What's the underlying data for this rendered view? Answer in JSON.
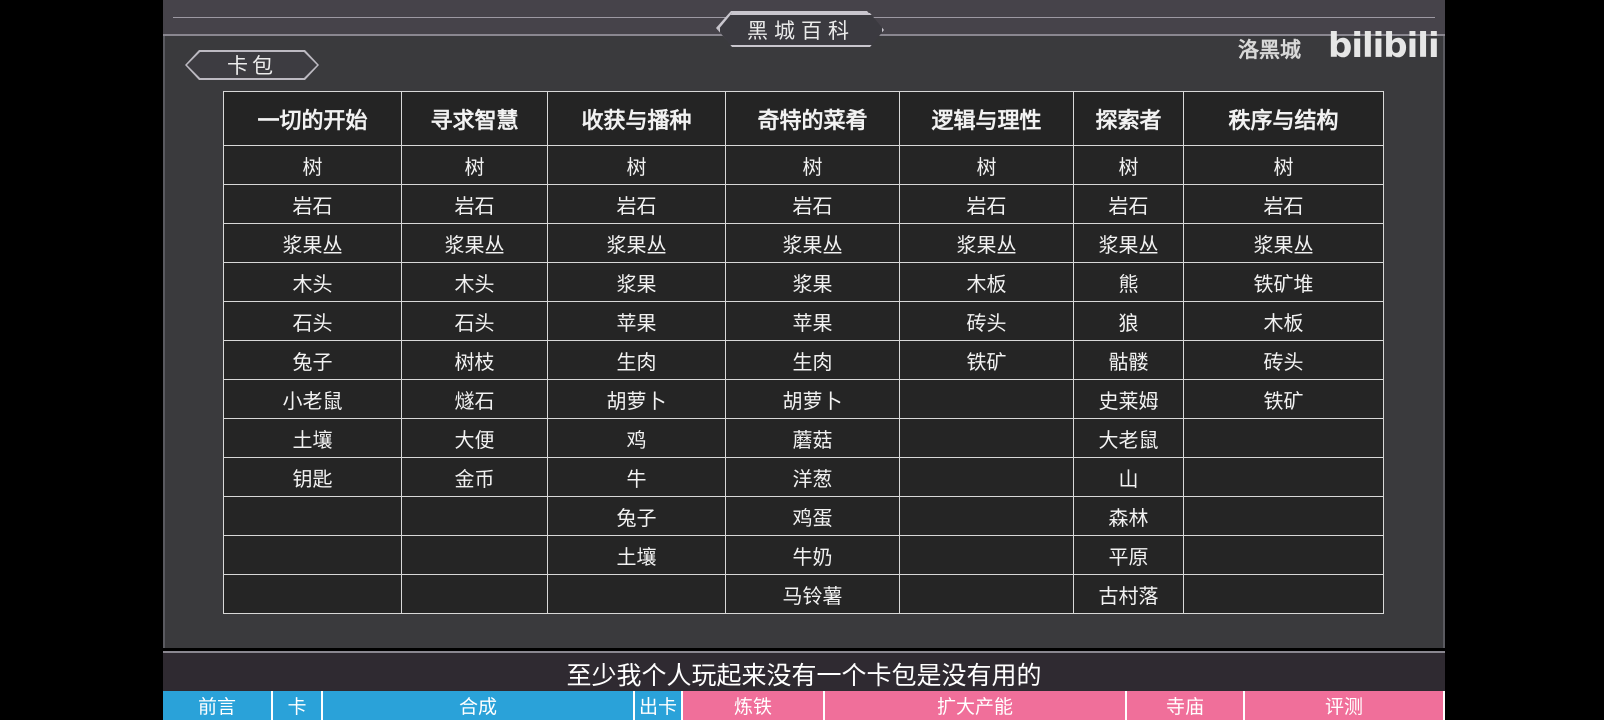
{
  "header": {
    "title": "黑城百科",
    "section_tag": "卡包",
    "brand": "洛黑城",
    "logo": "bilibili"
  },
  "colors": {
    "basic": "#3b3b3b",
    "material": "#6a7a8f",
    "food": "#e48f4f",
    "animal": "#8a5b3d",
    "enemy": "#d05a58",
    "location": "#b062c0",
    "special": "#f1bd53"
  },
  "table": {
    "headers": [
      "一切的开始",
      "寻求智慧",
      "收获与播种",
      "奇特的菜肴",
      "逻辑与理性",
      "探索者",
      "秩序与结构"
    ],
    "rows": [
      [
        {
          "t": "树",
          "c": "b"
        },
        {
          "t": "树",
          "c": "b"
        },
        {
          "t": "树",
          "c": "b"
        },
        {
          "t": "树",
          "c": "b"
        },
        {
          "t": "树",
          "c": "b"
        },
        {
          "t": "树",
          "c": "b"
        },
        {
          "t": "树",
          "c": "b"
        }
      ],
      [
        {
          "t": "岩石",
          "c": "b"
        },
        {
          "t": "岩石",
          "c": "b"
        },
        {
          "t": "岩石",
          "c": "b"
        },
        {
          "t": "岩石",
          "c": "b"
        },
        {
          "t": "岩石",
          "c": "b"
        },
        {
          "t": "岩石",
          "c": "b"
        },
        {
          "t": "岩石",
          "c": "b"
        }
      ],
      [
        {
          "t": "浆果丛",
          "c": "b"
        },
        {
          "t": "浆果丛",
          "c": "b"
        },
        {
          "t": "浆果丛",
          "c": "b"
        },
        {
          "t": "浆果丛",
          "c": "b"
        },
        {
          "t": "浆果丛",
          "c": "b"
        },
        {
          "t": "浆果丛",
          "c": "b"
        },
        {
          "t": "浆果丛",
          "c": "b"
        }
      ],
      [
        {
          "t": "木头",
          "c": "s"
        },
        {
          "t": "木头",
          "c": "s"
        },
        {
          "t": "浆果",
          "c": "o"
        },
        {
          "t": "浆果",
          "c": "o"
        },
        {
          "t": "木板",
          "c": "s"
        },
        {
          "t": "熊",
          "c": "r"
        },
        {
          "t": "铁矿堆",
          "c": "b"
        }
      ],
      [
        {
          "t": "石头",
          "c": "s"
        },
        {
          "t": "石头",
          "c": "s"
        },
        {
          "t": "苹果",
          "c": "o"
        },
        {
          "t": "苹果",
          "c": "o"
        },
        {
          "t": "砖头",
          "c": "s"
        },
        {
          "t": "狼",
          "c": "r"
        },
        {
          "t": "木板",
          "c": "s"
        }
      ],
      [
        {
          "t": "兔子",
          "c": "br"
        },
        {
          "t": "树枝",
          "c": "s"
        },
        {
          "t": "生肉",
          "c": "o"
        },
        {
          "t": "生肉",
          "c": "o"
        },
        {
          "t": "铁矿",
          "c": "s"
        },
        {
          "t": "骷髅",
          "c": "r"
        },
        {
          "t": "砖头",
          "c": "s"
        }
      ],
      [
        {
          "t": "小老鼠",
          "c": "br"
        },
        {
          "t": "燧石",
          "c": "s"
        },
        {
          "t": "胡萝卜",
          "c": "o"
        },
        {
          "t": "胡萝卜",
          "c": "o"
        },
        {
          "t": "",
          "c": "e"
        },
        {
          "t": "史莱姆",
          "c": "r"
        },
        {
          "t": "铁矿",
          "c": "s"
        }
      ],
      [
        {
          "t": "土壤",
          "c": "b"
        },
        {
          "t": "大便",
          "c": "s"
        },
        {
          "t": "鸡",
          "c": "br"
        },
        {
          "t": "蘑菇",
          "c": "o"
        },
        {
          "t": "",
          "c": "e"
        },
        {
          "t": "大老鼠",
          "c": "r"
        },
        {
          "t": "",
          "c": "e"
        }
      ],
      [
        {
          "t": "钥匙",
          "c": "y"
        },
        {
          "t": "金币",
          "c": "y"
        },
        {
          "t": "牛",
          "c": "br"
        },
        {
          "t": "洋葱",
          "c": "o"
        },
        {
          "t": "",
          "c": "e"
        },
        {
          "t": "山",
          "c": "p"
        },
        {
          "t": "",
          "c": "e"
        }
      ],
      [
        {
          "t": "",
          "c": "e"
        },
        {
          "t": "",
          "c": "e"
        },
        {
          "t": "兔子",
          "c": "br"
        },
        {
          "t": "鸡蛋",
          "c": "o"
        },
        {
          "t": "",
          "c": "e"
        },
        {
          "t": "森林",
          "c": "p"
        },
        {
          "t": "",
          "c": "e"
        }
      ],
      [
        {
          "t": "",
          "c": "e"
        },
        {
          "t": "",
          "c": "e"
        },
        {
          "t": "土壤",
          "c": "b"
        },
        {
          "t": "牛奶",
          "c": "o"
        },
        {
          "t": "",
          "c": "e"
        },
        {
          "t": "平原",
          "c": "p"
        },
        {
          "t": "",
          "c": "e"
        }
      ],
      [
        {
          "t": "",
          "c": "e"
        },
        {
          "t": "",
          "c": "e"
        },
        {
          "t": "",
          "c": "e"
        },
        {
          "t": "马铃薯",
          "c": "o"
        },
        {
          "t": "",
          "c": "e"
        },
        {
          "t": "古村落",
          "c": "p"
        },
        {
          "t": "",
          "c": "e"
        }
      ]
    ]
  },
  "subtitle": "至少我个人玩起来没有一个卡包是没有用的",
  "chapters": [
    {
      "label": "前言",
      "w": 110,
      "c": "blue"
    },
    {
      "label": "卡",
      "w": 50,
      "c": "blue"
    },
    {
      "label": "合成",
      "w": 312,
      "c": "blue"
    },
    {
      "label": "出卡",
      "w": 48,
      "c": "blue"
    },
    {
      "label": "炼铁",
      "w": 142,
      "c": "pink"
    },
    {
      "label": "扩大产能",
      "w": 302,
      "c": "pink"
    },
    {
      "label": "寺庙",
      "w": 118,
      "c": "pink"
    },
    {
      "label": "评测",
      "w": 200,
      "c": "pink"
    }
  ]
}
